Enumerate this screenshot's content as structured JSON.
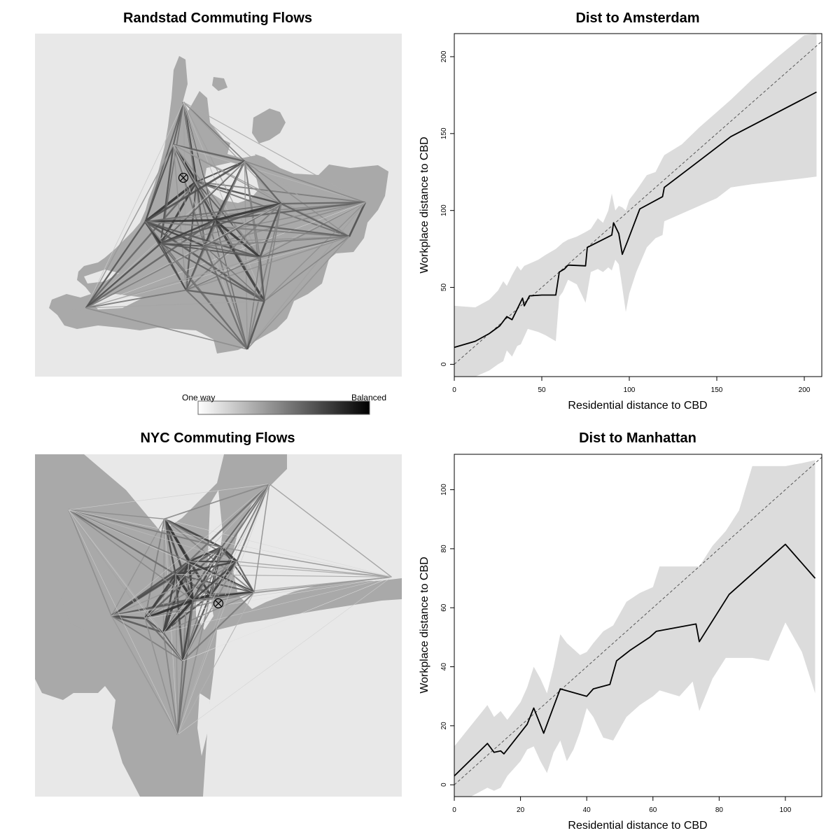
{
  "colors": {
    "map_background": "#e8e8e8",
    "land": "#a9a9a9",
    "water": "#e8e8e8",
    "band": "#dcdcdc",
    "line": "#000000",
    "diagonal": "#555555"
  },
  "legend": {
    "left_label": "One way",
    "right_label": "Balanced"
  },
  "chart_data": [
    {
      "type": "map",
      "title": "Randstad Commuting Flows",
      "cbd_marker": "Amsterdam",
      "nodes": [
        {
          "lon": 4.9,
          "lat": 52.37
        },
        {
          "lon": 4.75,
          "lat": 52.95
        },
        {
          "lon": 4.63,
          "lat": 52.64
        },
        {
          "lon": 5.47,
          "lat": 52.52
        },
        {
          "lon": 6.89,
          "lat": 52.22
        },
        {
          "lon": 4.3,
          "lat": 52.08
        },
        {
          "lon": 5.12,
          "lat": 52.09
        },
        {
          "lon": 5.9,
          "lat": 52.21
        },
        {
          "lon": 6.7,
          "lat": 51.97
        },
        {
          "lon": 4.48,
          "lat": 51.92
        },
        {
          "lon": 5.0,
          "lat": 51.9
        },
        {
          "lon": 5.65,
          "lat": 51.82
        },
        {
          "lon": 3.6,
          "lat": 51.45
        },
        {
          "lon": 4.78,
          "lat": 51.58
        },
        {
          "lon": 5.7,
          "lat": 51.5
        },
        {
          "lon": 5.5,
          "lat": 51.15
        }
      ]
    },
    {
      "type": "line",
      "title": "Dist to Amsterdam",
      "xlabel": "Residential distance to CBD",
      "ylabel": "Workplace distance to CBD",
      "xlim": [
        0,
        210
      ],
      "ylim": [
        -8,
        215
      ],
      "xticks": [
        0,
        50,
        100,
        150,
        200
      ],
      "yticks": [
        0,
        50,
        100,
        150,
        200
      ],
      "diagonal": true,
      "series": [
        {
          "x": [
            0,
            12,
            20,
            26,
            30,
            33,
            36,
            39,
            40,
            43,
            50,
            58,
            60,
            63,
            65,
            75,
            76,
            90,
            91,
            94,
            96,
            99,
            106,
            119,
            120,
            135,
            158,
            207
          ],
          "values": [
            11,
            15,
            20,
            25,
            31,
            29,
            36,
            43,
            38,
            44.5,
            45,
            45,
            60,
            62,
            64.5,
            64,
            76,
            84,
            92,
            85,
            71.5,
            80,
            101,
            109,
            115,
            128,
            148,
            177
          ]
        }
      ],
      "band": {
        "x": [
          0,
          12,
          20,
          25,
          28,
          30,
          33,
          36,
          38,
          40,
          42,
          48,
          52,
          55,
          58,
          60,
          62,
          65,
          70,
          75,
          78,
          82,
          85,
          88,
          90,
          92,
          94,
          96,
          98,
          100,
          104,
          110,
          115,
          119,
          120,
          130,
          140,
          150,
          158,
          170,
          185,
          200,
          207
        ],
        "upper": [
          38,
          37,
          42,
          48,
          54,
          51,
          58,
          64,
          61,
          64,
          65,
          68,
          71,
          73,
          75,
          77,
          79,
          81,
          83,
          86,
          88,
          95,
          92,
          100,
          111,
          100,
          103,
          102,
          100,
          107,
          113,
          123,
          125,
          134,
          136,
          143,
          154,
          164,
          172,
          185,
          200,
          214,
          215
        ],
        "lower": [
          -8,
          -8,
          -4,
          0,
          2,
          9,
          5,
          12,
          13,
          18,
          23,
          21,
          19,
          17,
          15,
          44,
          47,
          55,
          52,
          40,
          60,
          62,
          60,
          63,
          61,
          68,
          65,
          50,
          34,
          46,
          60,
          76,
          82,
          84,
          93,
          98,
          103,
          108,
          115,
          117,
          119,
          121,
          122
        ]
      }
    },
    {
      "type": "map",
      "title": "NYC Commuting Flows",
      "cbd_marker": "Manhattan",
      "nodes": [
        {
          "lon": -73.98,
          "lat": 40.76
        },
        {
          "lon": -74.43,
          "lat": 41.35
        },
        {
          "lon": -73.87,
          "lat": 41.13
        },
        {
          "lon": -74.19,
          "lat": 41.02
        },
        {
          "lon": -74.32,
          "lat": 40.92
        },
        {
          "lon": -73.72,
          "lat": 41.02
        },
        {
          "lon": -74.95,
          "lat": 40.6
        },
        {
          "lon": -74.62,
          "lat": 40.58
        },
        {
          "lon": -74.44,
          "lat": 40.47
        },
        {
          "lon": -74.15,
          "lat": 40.72
        },
        {
          "lon": -73.55,
          "lat": 40.78
        },
        {
          "lon": -72.2,
          "lat": 40.9
        },
        {
          "lon": -74.25,
          "lat": 40.25
        },
        {
          "lon": -74.3,
          "lat": 39.68
        },
        {
          "lon": -75.37,
          "lat": 41.42
        },
        {
          "lon": -73.4,
          "lat": 41.62
        }
      ]
    },
    {
      "type": "line",
      "title": "Dist to Manhattan",
      "xlabel": "Residential distance to CBD",
      "ylabel": "Workplace distance to CBD",
      "xlim": [
        0,
        111
      ],
      "ylim": [
        -4,
        112
      ],
      "xticks": [
        0,
        20,
        40,
        60,
        80,
        100
      ],
      "yticks": [
        0,
        20,
        40,
        60,
        80,
        100
      ],
      "diagonal": true,
      "series": [
        {
          "x": [
            0,
            10,
            12,
            14,
            15,
            22,
            24,
            27,
            31,
            32,
            40,
            42,
            47,
            49,
            53,
            59,
            61,
            73,
            74,
            83,
            100,
            109
          ],
          "values": [
            3,
            14,
            11,
            11.5,
            10.5,
            20.5,
            26,
            17.5,
            29.5,
            32.5,
            30,
            32.5,
            34,
            42,
            45.5,
            50,
            52,
            54.5,
            48.5,
            64.5,
            81.5,
            70
          ]
        }
      ],
      "band": {
        "x": [
          0,
          5,
          10,
          12,
          14,
          16,
          20,
          22,
          24,
          26,
          28,
          30,
          32,
          34,
          36,
          38,
          40,
          42,
          45,
          48,
          52,
          56,
          60,
          62,
          65,
          68,
          72,
          74,
          78,
          82,
          86,
          90,
          95,
          100,
          105,
          109
        ],
        "upper": [
          13,
          20,
          27,
          23,
          25,
          22,
          28,
          33,
          40,
          36,
          31,
          40,
          51,
          48,
          46,
          44,
          45,
          48,
          52,
          54,
          62,
          65,
          67,
          74,
          74,
          74,
          74,
          74,
          81,
          86,
          93,
          108,
          108,
          108,
          109,
          110
        ],
        "lower": [
          -4,
          -4,
          -1,
          -2,
          -1,
          3,
          8,
          12,
          13,
          8,
          4,
          11,
          15,
          8,
          12,
          18,
          26,
          23,
          16,
          15,
          23,
          27,
          30,
          32,
          31,
          30,
          35,
          25,
          36,
          43,
          43,
          43,
          42,
          55,
          45,
          31
        ]
      }
    }
  ]
}
